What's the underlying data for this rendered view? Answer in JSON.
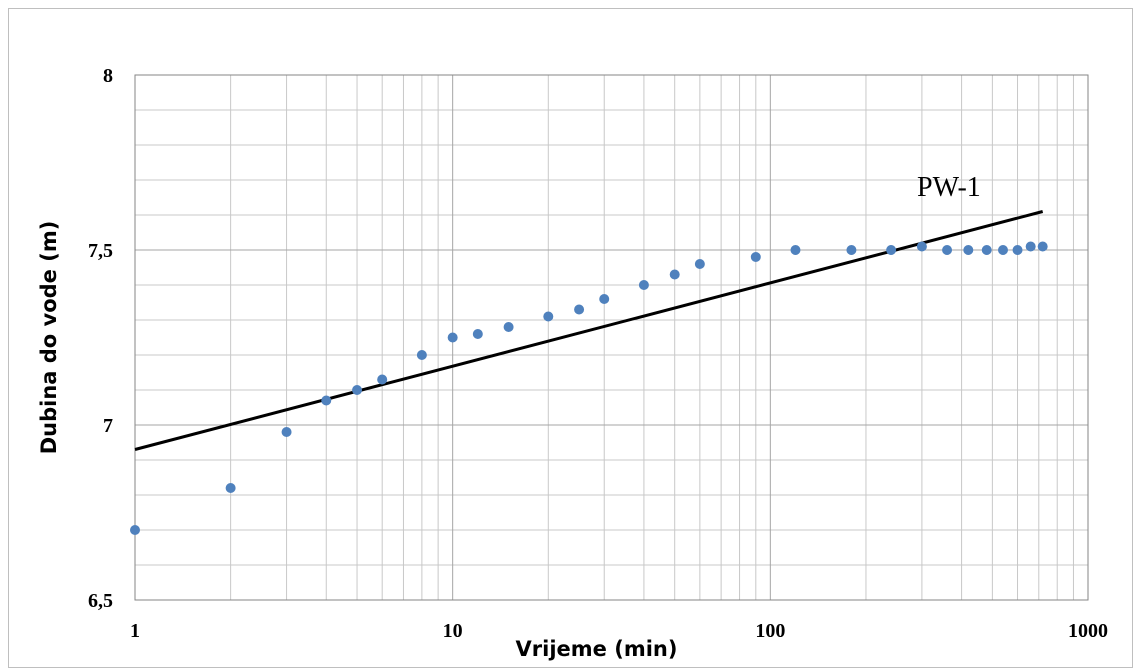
{
  "chart_data": {
    "type": "scatter",
    "xlabel": "Vrijeme (min)",
    "ylabel": "Dubina do vode (m)",
    "x_scale": "log",
    "xlim": [
      1,
      1000
    ],
    "ylim": [
      6.5,
      8
    ],
    "x_tick_labels": [
      "1",
      "10",
      "100",
      "1000"
    ],
    "y_tick_labels": [
      "6,5",
      "7",
      "7,5",
      "8"
    ],
    "grid": true,
    "annotation": "PW-1",
    "series": [
      {
        "color": "#4f81bd",
        "points": [
          [
            1,
            6.7
          ],
          [
            2,
            6.82
          ],
          [
            3,
            6.98
          ],
          [
            4,
            7.07
          ],
          [
            5,
            7.1
          ],
          [
            6,
            7.13
          ],
          [
            8,
            7.2
          ],
          [
            10,
            7.25
          ],
          [
            12,
            7.26
          ],
          [
            15,
            7.28
          ],
          [
            20,
            7.31
          ],
          [
            25,
            7.33
          ],
          [
            30,
            7.36
          ],
          [
            40,
            7.4
          ],
          [
            50,
            7.43
          ],
          [
            60,
            7.46
          ],
          [
            90,
            7.48
          ],
          [
            120,
            7.5
          ],
          [
            180,
            7.5
          ],
          [
            240,
            7.5
          ],
          [
            300,
            7.51
          ],
          [
            360,
            7.5
          ],
          [
            420,
            7.5
          ],
          [
            480,
            7.5
          ],
          [
            540,
            7.5
          ],
          [
            600,
            7.5
          ],
          [
            660,
            7.51
          ],
          [
            720,
            7.51
          ]
        ]
      }
    ],
    "trendline": {
      "color": "#000000",
      "x": [
        1,
        720
      ],
      "y": [
        6.93,
        7.61
      ]
    }
  }
}
